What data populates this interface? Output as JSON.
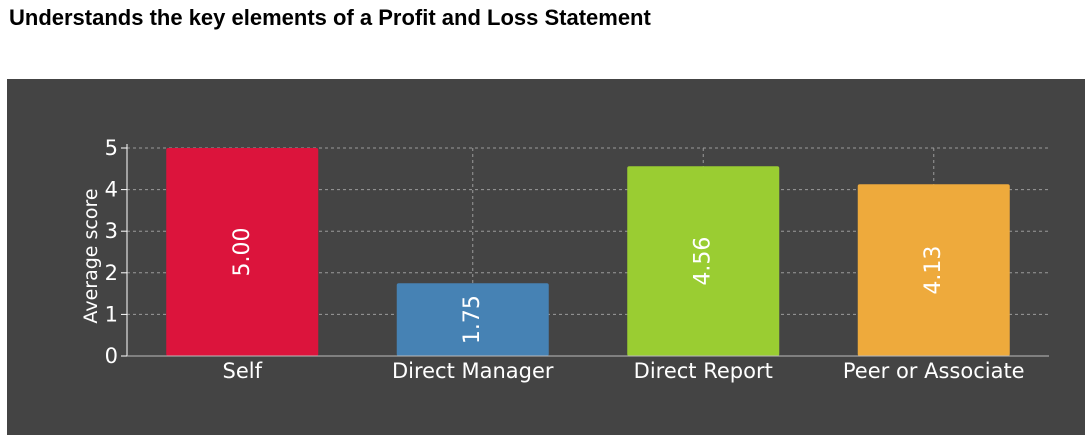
{
  "page": {
    "title": "Understands the key elements of a Profit and Loss Statement"
  },
  "colors": {
    "panel_background": "#444444",
    "axis_text": "#ffffff",
    "gridline": "#9a9a9a"
  },
  "chart_data": {
    "type": "bar",
    "ylabel": "Average score",
    "xlabel": "",
    "ylim": [
      0,
      5
    ],
    "yticks": [
      0,
      1,
      2,
      3,
      4,
      5
    ],
    "grid": true,
    "categories": [
      "Self",
      "Direct Manager",
      "Direct Report",
      "Peer or Associate"
    ],
    "values": [
      5.0,
      1.75,
      4.56,
      4.13
    ],
    "value_labels": [
      "5.00",
      "1.75",
      "4.56",
      "4.13"
    ],
    "bar_colors": [
      "#dc143c",
      "#4682b4",
      "#9acd32",
      "#eeaa3c"
    ]
  }
}
